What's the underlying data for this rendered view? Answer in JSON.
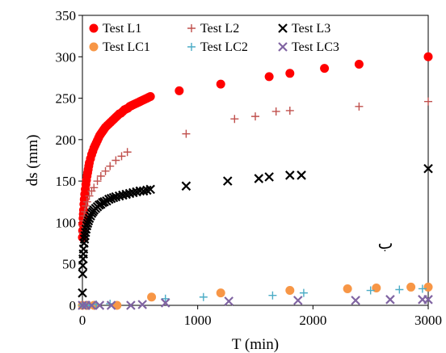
{
  "chart_data": {
    "type": "scatter",
    "title": "",
    "xlabel": "T (min)",
    "ylabel": "ds (mm)",
    "xlim": [
      0,
      3000
    ],
    "ylim": [
      0,
      350
    ],
    "xticks": [
      0,
      1000,
      2000,
      3000
    ],
    "yticks": [
      0,
      50,
      100,
      150,
      200,
      250,
      300,
      350
    ],
    "grid": false,
    "legend_position": "top-left",
    "annotation": "ب",
    "series": [
      {
        "name": "Test L1",
        "marker": "circle",
        "color": "#ff0000",
        "x": [
          0,
          2,
          4,
          6,
          8,
          10,
          13,
          16,
          20,
          25,
          30,
          35,
          40,
          45,
          50,
          55,
          60,
          70,
          80,
          90,
          100,
          110,
          120,
          130,
          140,
          150,
          160,
          170,
          180,
          190,
          200,
          215,
          230,
          245,
          260,
          275,
          290,
          305,
          320,
          335,
          350,
          365,
          380,
          395,
          410,
          425,
          440,
          455,
          470,
          485,
          500,
          515,
          530,
          545,
          560,
          575,
          590,
          840,
          1200,
          1620,
          1800,
          2100,
          2400,
          3000
        ],
        "y": [
          82,
          90,
          98,
          105,
          110,
          115,
          122,
          128,
          134,
          140,
          146,
          151,
          156,
          160,
          164,
          168,
          172,
          177,
          182,
          186,
          190,
          193,
          196,
          199,
          202,
          205,
          207,
          209,
          211,
          213,
          215,
          217,
          219,
          221,
          223,
          225,
          227,
          229,
          231,
          232,
          234,
          236,
          237,
          238,
          240,
          241,
          242,
          243,
          244,
          245,
          246,
          247,
          248,
          249,
          250,
          251,
          252,
          259,
          267,
          276,
          280,
          286,
          291,
          300
        ]
      },
      {
        "name": "Test L2",
        "marker": "plus",
        "color": "#c0504d",
        "x": [
          0,
          5,
          10,
          15,
          20,
          30,
          40,
          60,
          80,
          100,
          130,
          160,
          200,
          240,
          290,
          340,
          390,
          900,
          1320,
          1500,
          1680,
          1800,
          2400,
          3000
        ],
        "y": [
          88,
          96,
          102,
          108,
          113,
          120,
          125,
          132,
          138,
          142,
          150,
          156,
          162,
          168,
          175,
          180,
          185,
          207,
          225,
          228,
          234,
          235,
          240,
          246
        ]
      },
      {
        "name": "Test L3",
        "marker": "x",
        "color": "#000000",
        "x": [
          0,
          2,
          4,
          6,
          8,
          10,
          14,
          18,
          22,
          27,
          32,
          38,
          45,
          52,
          60,
          70,
          80,
          90,
          100,
          115,
          130,
          145,
          160,
          175,
          190,
          210,
          230,
          250,
          270,
          290,
          320,
          350,
          380,
          410,
          440,
          470,
          500,
          530,
          560,
          590,
          900,
          1260,
          1530,
          1620,
          1800,
          1900,
          3000
        ],
        "y": [
          15,
          38,
          48,
          56,
          62,
          68,
          75,
          80,
          84,
          88,
          92,
          96,
          99,
          102,
          105,
          108,
          111,
          113,
          115,
          117,
          119,
          121,
          122,
          124,
          125,
          126,
          128,
          129,
          130,
          131,
          132,
          133,
          134,
          135,
          136,
          137,
          138,
          138,
          139,
          140,
          144,
          150,
          153,
          155,
          157,
          157,
          165
        ]
      },
      {
        "name": "Test LC1",
        "marker": "circle",
        "color": "#f79646",
        "x": [
          0,
          40,
          100,
          300,
          600,
          1200,
          1800,
          2300,
          2550,
          2850,
          3000
        ],
        "y": [
          0,
          0,
          0,
          0,
          10,
          15,
          18,
          20,
          21,
          22,
          22
        ]
      },
      {
        "name": "Test LC2",
        "marker": "plus",
        "color": "#4bacc6",
        "x": [
          0,
          30,
          60,
          120,
          240,
          720,
          1050,
          1650,
          1920,
          2500,
          2750,
          2950
        ],
        "y": [
          0,
          0,
          0,
          1,
          2,
          8,
          10,
          12,
          15,
          18,
          19,
          20
        ]
      },
      {
        "name": "Test LC3",
        "marker": "x",
        "color": "#8064a2",
        "x": [
          0,
          30,
          80,
          150,
          250,
          420,
          520,
          720,
          1270,
          1870,
          2370,
          2670,
          2950,
          3000
        ],
        "y": [
          0,
          0,
          0,
          0,
          0,
          0,
          1,
          3,
          5,
          6,
          6,
          7,
          7,
          7
        ]
      }
    ]
  }
}
